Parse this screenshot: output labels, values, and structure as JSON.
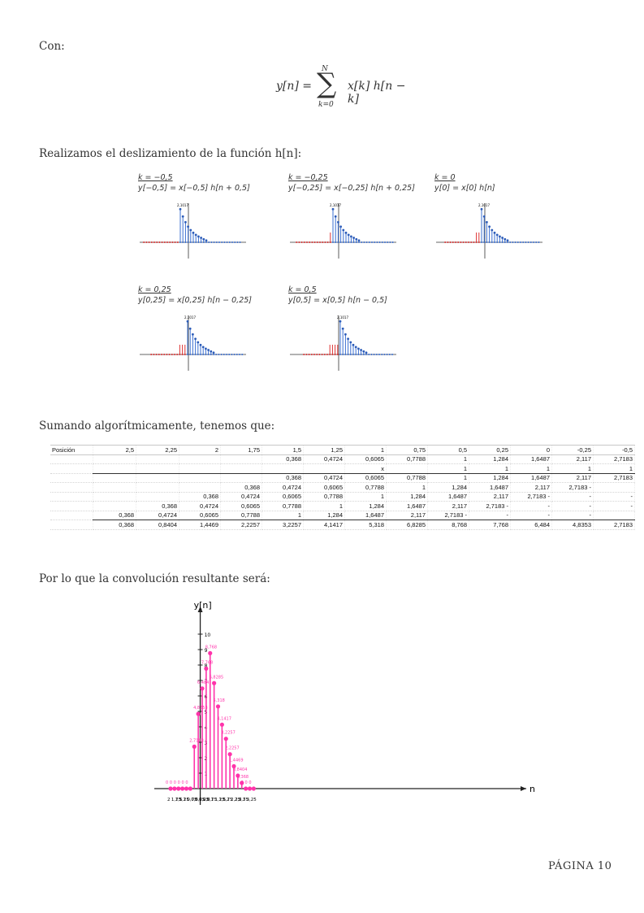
{
  "intro": "Con:",
  "formula": {
    "lhs": "y[n] =",
    "sigma": "∑",
    "upper": "N",
    "lower": "k=0",
    "rhs": "x[k] h[n − k]"
  },
  "slide_heading": "Realizamos el deslizamiento de la función h[n]:",
  "panels": [
    {
      "k": "k = −0,5",
      "eq": "y[−0,5] = x[−0,5] h[n + 0,5]",
      "peak": "2,1017"
    },
    {
      "k": "k = −0,25",
      "eq": "y[−0,25] = x[−0,25] h[n + 0,25]",
      "peak": "2,1017"
    },
    {
      "k": "k = 0",
      "eq": "y[0] = x[0] h[n]",
      "peak": "2,1017"
    },
    {
      "k": "k = 0,25",
      "eq": "y[0,25] = x[0,25] h[n − 0,25]",
      "peak": "2,1017"
    },
    {
      "k": "k = 0,5",
      "eq": "y[0,5] = x[0,5] h[n − 0,5]",
      "peak": "2,1017"
    }
  ],
  "sum_heading": "Sumando algorítmicamente, tenemos que:",
  "sheet": {
    "header": [
      "Posición",
      "2,5",
      "2,25",
      "2",
      "1,75",
      "1,5",
      "1,25",
      "1",
      "0,75",
      "0,5",
      "0,25",
      "0",
      "-0,25",
      "-0,5"
    ],
    "rows": [
      [
        "",
        "",
        "",
        "",
        "",
        "0,368",
        "0,4724",
        "0,6065",
        "0,7788",
        "1",
        "1,284",
        "1,6487",
        "2,117",
        "2,7183"
      ],
      [
        "",
        "",
        "",
        "",
        "",
        "",
        "",
        "x",
        "",
        "1",
        "1",
        "1",
        "1",
        "1"
      ],
      [
        "",
        "",
        "",
        "",
        "",
        "0,368",
        "0,4724",
        "0,6065",
        "0,7788",
        "1",
        "1,284",
        "1,6487",
        "2,117",
        "2,7183"
      ],
      [
        "",
        "",
        "",
        "",
        "0,368",
        "0,4724",
        "0,6065",
        "0,7788",
        "1",
        "1,284",
        "1,6487",
        "2,117",
        "2,7183 -",
        ""
      ],
      [
        "",
        "",
        "",
        "0,368",
        "0,4724",
        "0,6065",
        "0,7788",
        "1",
        "1,284",
        "1,6487",
        "2,117",
        "2,7183 -",
        "-",
        "-"
      ],
      [
        "",
        "",
        "0,368",
        "0,4724",
        "0,6065",
        "0,7788",
        "1",
        "1,284",
        "1,6487",
        "2,117",
        "2,7183 -",
        "-",
        "-",
        "-"
      ],
      [
        "",
        "0,368",
        "0,4724",
        "0,6065",
        "0,7788",
        "1",
        "1,284",
        "1,6487",
        "2,117",
        "2,7183 -",
        "-",
        "-",
        "-",
        ""
      ],
      [
        "",
        "0,368",
        "0,8404",
        "1,4469",
        "2,2257",
        "3,2257",
        "4,1417",
        "5,318",
        "6,8285",
        "8,768",
        "7,768",
        "6,484",
        "4,8353",
        "2,7183"
      ]
    ]
  },
  "conv_heading": "Por lo que la convolución resultante será:",
  "chart_data": {
    "type": "stem",
    "ylabel": "y[n]",
    "xlabel": "n",
    "x_ticks": [
      "2",
      "1,75",
      "1,5",
      "1,25",
      "1",
      "0,75",
      "0,5",
      "0,25",
      "0,25",
      "0,5",
      "0,75",
      "1",
      "1,25",
      "1,5",
      "1,75",
      "2",
      "2,25",
      "2,5",
      "2,75",
      "3",
      "3,25"
    ],
    "y_ticks": [
      "1",
      "2",
      "3",
      "4",
      "5",
      "6",
      "7",
      "8",
      "9",
      "10"
    ],
    "ylim": [
      0,
      10
    ],
    "points": [
      {
        "x": -2,
        "y": 0,
        "label": "0"
      },
      {
        "x": -1.75,
        "y": 0,
        "label": "0"
      },
      {
        "x": -1.5,
        "y": 0,
        "label": "0"
      },
      {
        "x": -1.25,
        "y": 0,
        "label": "0"
      },
      {
        "x": -1,
        "y": 0,
        "label": "0"
      },
      {
        "x": -0.75,
        "y": 0,
        "label": "0"
      },
      {
        "x": -0.5,
        "y": 2.7183,
        "label": "2,7183"
      },
      {
        "x": -0.25,
        "y": 4.8353,
        "label": "4,8353"
      },
      {
        "x": 0,
        "y": 6.484,
        "label": "6,484"
      },
      {
        "x": 0.25,
        "y": 7.768,
        "label": "7,768"
      },
      {
        "x": 0.5,
        "y": 8.768,
        "label": "8,768"
      },
      {
        "x": 0.75,
        "y": 6.8285,
        "label": "6,8285"
      },
      {
        "x": 1,
        "y": 5.318,
        "label": "5,318"
      },
      {
        "x": 1.25,
        "y": 4.1417,
        "label": "4,1417"
      },
      {
        "x": 1.5,
        "y": 3.2257,
        "label": "3,2257"
      },
      {
        "x": 1.75,
        "y": 2.2257,
        "label": "2,2257"
      },
      {
        "x": 2,
        "y": 1.4469,
        "label": "1,4469"
      },
      {
        "x": 2.25,
        "y": 0.8404,
        "label": "0,8404"
      },
      {
        "x": 2.5,
        "y": 0.368,
        "label": "0,368"
      },
      {
        "x": 2.75,
        "y": 0,
        "label": "0"
      },
      {
        "x": 3,
        "y": 0,
        "label": "0"
      },
      {
        "x": 3.25,
        "y": 0,
        "label": "0"
      }
    ],
    "colors": {
      "stem": "#ff33aa",
      "axis": "#222222"
    }
  },
  "page_number": "PÁGINA 10"
}
